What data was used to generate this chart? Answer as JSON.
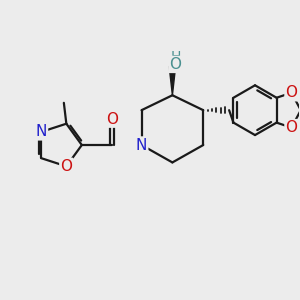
{
  "background_color": "#ececec",
  "bond_color": "#1a1a1a",
  "bond_width": 1.6,
  "atom_colors": {
    "N": "#2020cc",
    "O_carbonyl": "#cc1111",
    "O_ring": "#cc1111",
    "O_dioxol": "#cc1111",
    "OH_color": "#4a9090",
    "H_color": "#4a9090"
  },
  "font_size_atom": 11,
  "figsize": [
    3.0,
    3.0
  ],
  "dpi": 100,
  "xlim": [
    0.0,
    6.0
  ],
  "ylim": [
    0.5,
    5.5
  ]
}
